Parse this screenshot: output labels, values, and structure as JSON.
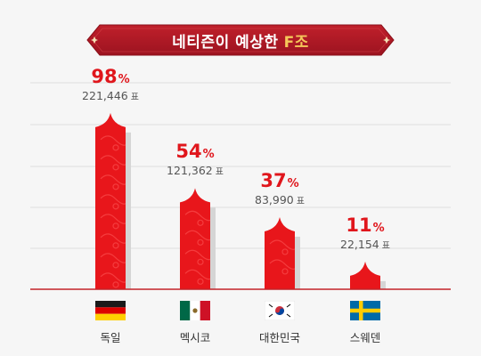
{
  "header": {
    "title": "네티즌이 예상한",
    "group": "F조"
  },
  "colors": {
    "banner": "#b01722",
    "bar": "#e8161b",
    "accent": "#f5c75a"
  },
  "chart_data": {
    "type": "bar",
    "categories": [
      "독일",
      "멕시코",
      "대한민국",
      "스웨덴"
    ],
    "percent_labels": [
      "98",
      "54",
      "37",
      "11"
    ],
    "percent_unit": "%",
    "votes_labels": [
      "221,446",
      "121,362",
      "83,990",
      "22,154"
    ],
    "votes_unit": "표",
    "values": [
      98,
      54,
      37,
      11
    ],
    "votes": [
      221446,
      121362,
      83990,
      22154
    ],
    "ylim": [
      0,
      100
    ],
    "grid": true,
    "flags": [
      "germany-flag-icon",
      "mexico-flag-icon",
      "korea-flag-icon",
      "sweden-flag-icon"
    ]
  }
}
